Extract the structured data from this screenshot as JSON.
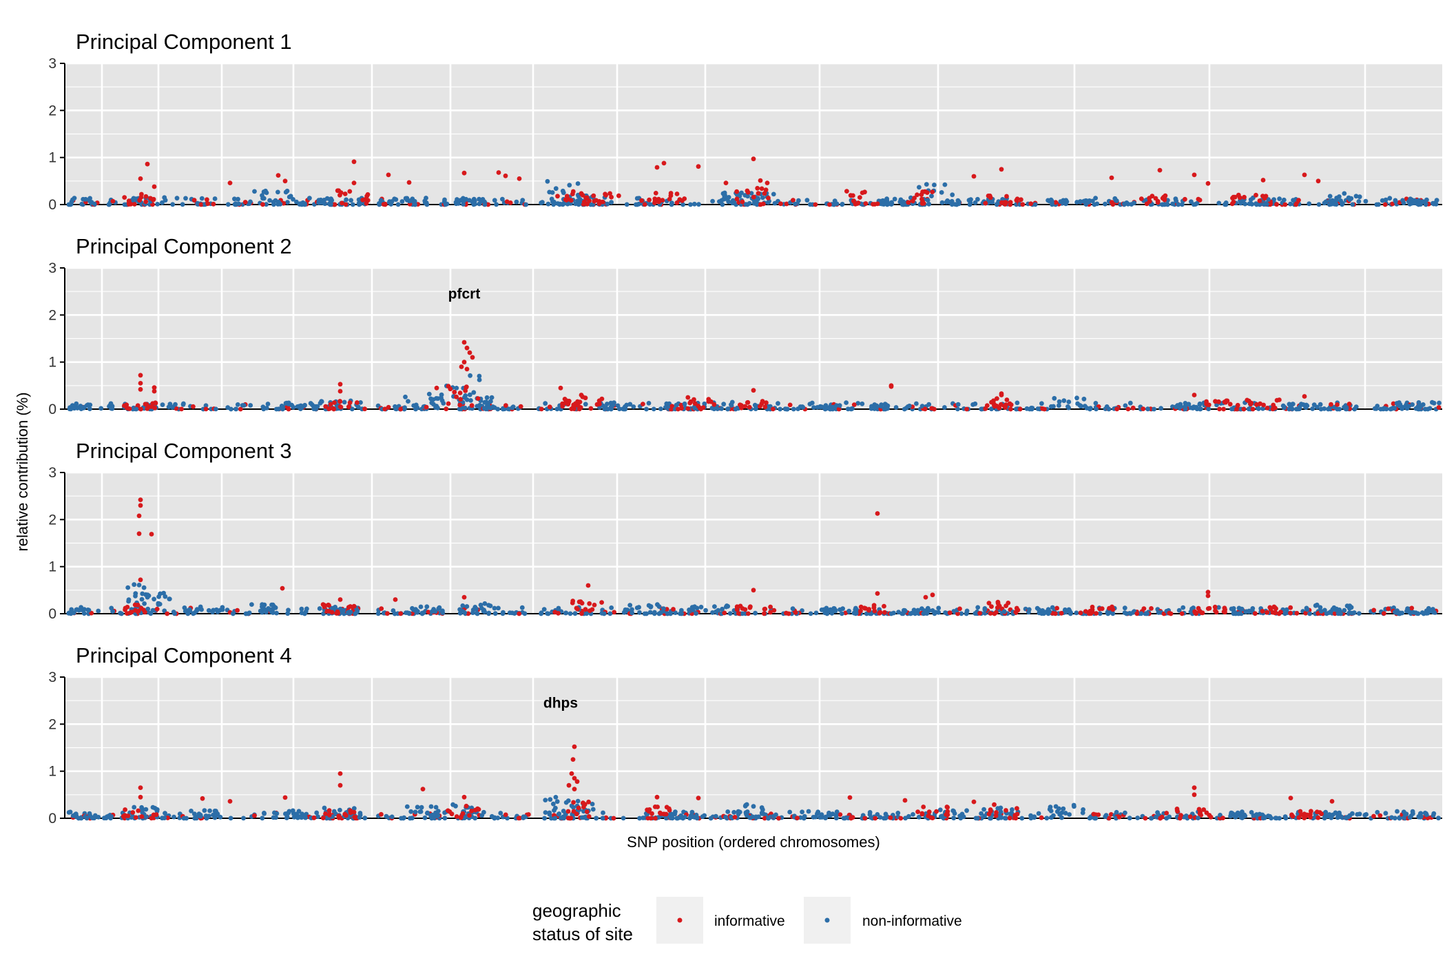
{
  "chart_data": {
    "type": "scatter",
    "xlabel": "SNP position (ordered chromosomes)",
    "ylabel": "relative contribution (%)",
    "ylim": [
      0,
      3
    ],
    "y_ticks": [
      "0",
      "1",
      "2",
      "3"
    ],
    "grid": true,
    "legend": {
      "title_lines": [
        "geographic",
        "status of site"
      ],
      "position": "bottom",
      "entries": [
        "informative",
        "non-informative"
      ]
    },
    "colors": {
      "informative": "#d7191c",
      "non_informative": "#2c6ea8",
      "panel_background": "#e5e5e5",
      "gridline": "#ffffff"
    },
    "panels": [
      {
        "title": "Principal Component 1",
        "annotation": null,
        "informative_peaks": [
          [
            0.06,
            0.86
          ],
          [
            0.055,
            0.55
          ],
          [
            0.065,
            0.38
          ],
          [
            0.12,
            0.46
          ],
          [
            0.155,
            0.62
          ],
          [
            0.16,
            0.5
          ],
          [
            0.21,
            0.91
          ],
          [
            0.21,
            0.46
          ],
          [
            0.235,
            0.63
          ],
          [
            0.25,
            0.47
          ],
          [
            0.29,
            0.67
          ],
          [
            0.315,
            0.68
          ],
          [
            0.32,
            0.61
          ],
          [
            0.33,
            0.55
          ],
          [
            0.43,
            0.79
          ],
          [
            0.435,
            0.88
          ],
          [
            0.46,
            0.81
          ],
          [
            0.48,
            0.46
          ],
          [
            0.5,
            0.97
          ],
          [
            0.505,
            0.51
          ],
          [
            0.51,
            0.46
          ],
          [
            0.66,
            0.6
          ],
          [
            0.68,
            0.75
          ],
          [
            0.76,
            0.57
          ],
          [
            0.795,
            0.73
          ],
          [
            0.82,
            0.63
          ],
          [
            0.83,
            0.45
          ],
          [
            0.87,
            0.52
          ],
          [
            0.9,
            0.63
          ],
          [
            0.91,
            0.5
          ]
        ],
        "informative_clusters": [
          [
            0.055,
            0.22
          ],
          [
            0.21,
            0.3
          ],
          [
            0.37,
            0.3
          ],
          [
            0.39,
            0.28
          ],
          [
            0.44,
            0.25
          ],
          [
            0.5,
            0.35
          ],
          [
            0.58,
            0.3
          ],
          [
            0.62,
            0.3
          ],
          [
            0.68,
            0.2
          ],
          [
            0.79,
            0.2
          ],
          [
            0.86,
            0.22
          ]
        ],
        "non_informative_clusters": [
          [
            0.01,
            0.15
          ],
          [
            0.06,
            0.15
          ],
          [
            0.15,
            0.3
          ],
          [
            0.18,
            0.15
          ],
          [
            0.25,
            0.15
          ],
          [
            0.29,
            0.12
          ],
          [
            0.36,
            0.5
          ],
          [
            0.38,
            0.2
          ],
          [
            0.49,
            0.25
          ],
          [
            0.5,
            0.25
          ],
          [
            0.6,
            0.15
          ],
          [
            0.63,
            0.45
          ],
          [
            0.67,
            0.12
          ],
          [
            0.73,
            0.1
          ],
          [
            0.86,
            0.15
          ],
          [
            0.93,
            0.25
          ],
          [
            0.98,
            0.12
          ]
        ]
      },
      {
        "title": "Principal Component 2",
        "annotation": {
          "text": "pfcrt",
          "x": 0.29,
          "y": 2.45
        },
        "informative_peaks": [
          [
            0.29,
            1.42
          ],
          [
            0.292,
            1.3
          ],
          [
            0.294,
            1.2
          ],
          [
            0.296,
            1.1
          ],
          [
            0.29,
            1.0
          ],
          [
            0.288,
            0.9
          ],
          [
            0.292,
            0.85
          ],
          [
            0.055,
            0.72
          ],
          [
            0.055,
            0.55
          ],
          [
            0.055,
            0.42
          ],
          [
            0.065,
            0.46
          ],
          [
            0.065,
            0.38
          ],
          [
            0.2,
            0.53
          ],
          [
            0.2,
            0.38
          ],
          [
            0.27,
            0.45
          ],
          [
            0.36,
            0.45
          ],
          [
            0.375,
            0.3
          ],
          [
            0.5,
            0.4
          ],
          [
            0.6,
            0.5
          ],
          [
            0.6,
            0.48
          ],
          [
            0.68,
            0.3
          ],
          [
            0.68,
            0.33
          ],
          [
            0.82,
            0.3
          ],
          [
            0.9,
            0.27
          ]
        ],
        "informative_clusters": [
          [
            0.055,
            0.15
          ],
          [
            0.2,
            0.2
          ],
          [
            0.29,
            0.5
          ],
          [
            0.37,
            0.3
          ],
          [
            0.38,
            0.3
          ],
          [
            0.46,
            0.25
          ],
          [
            0.5,
            0.2
          ],
          [
            0.68,
            0.25
          ],
          [
            0.84,
            0.2
          ],
          [
            0.87,
            0.2
          ]
        ],
        "non_informative_clusters": [
          [
            0.02,
            0.12
          ],
          [
            0.07,
            0.12
          ],
          [
            0.17,
            0.15
          ],
          [
            0.2,
            0.18
          ],
          [
            0.26,
            0.35
          ],
          [
            0.29,
            0.8
          ],
          [
            0.3,
            0.25
          ],
          [
            0.4,
            0.15
          ],
          [
            0.47,
            0.15
          ],
          [
            0.55,
            0.12
          ],
          [
            0.6,
            0.15
          ],
          [
            0.73,
            0.25
          ],
          [
            0.82,
            0.12
          ],
          [
            0.9,
            0.12
          ],
          [
            0.98,
            0.15
          ]
        ]
      },
      {
        "title": "Principal Component 3",
        "annotation": null,
        "informative_peaks": [
          [
            0.055,
            2.42
          ],
          [
            0.055,
            2.3
          ],
          [
            0.054,
            2.08
          ],
          [
            0.054,
            1.7
          ],
          [
            0.063,
            1.69
          ],
          [
            0.59,
            2.13
          ],
          [
            0.055,
            0.72
          ],
          [
            0.158,
            0.54
          ],
          [
            0.38,
            0.6
          ],
          [
            0.59,
            0.43
          ],
          [
            0.63,
            0.4
          ],
          [
            0.625,
            0.35
          ],
          [
            0.83,
            0.46
          ],
          [
            0.83,
            0.38
          ],
          [
            0.5,
            0.5
          ],
          [
            0.29,
            0.35
          ],
          [
            0.24,
            0.3
          ],
          [
            0.2,
            0.3
          ]
        ],
        "informative_clusters": [
          [
            0.055,
            0.2
          ],
          [
            0.2,
            0.2
          ],
          [
            0.38,
            0.3
          ],
          [
            0.5,
            0.2
          ],
          [
            0.59,
            0.2
          ],
          [
            0.68,
            0.25
          ],
          [
            0.75,
            0.15
          ],
          [
            0.83,
            0.15
          ],
          [
            0.88,
            0.15
          ]
        ],
        "non_informative_clusters": [
          [
            0.01,
            0.1
          ],
          [
            0.06,
            0.62
          ],
          [
            0.065,
            0.45
          ],
          [
            0.1,
            0.15
          ],
          [
            0.15,
            0.2
          ],
          [
            0.2,
            0.15
          ],
          [
            0.26,
            0.15
          ],
          [
            0.3,
            0.22
          ],
          [
            0.42,
            0.2
          ],
          [
            0.47,
            0.18
          ],
          [
            0.56,
            0.12
          ],
          [
            0.62,
            0.12
          ],
          [
            0.72,
            0.12
          ],
          [
            0.86,
            0.12
          ],
          [
            0.92,
            0.2
          ],
          [
            0.98,
            0.12
          ]
        ]
      },
      {
        "title": "Principal Component 4",
        "annotation": {
          "text": "dhps",
          "x": 0.36,
          "y": 2.45
        },
        "informative_peaks": [
          [
            0.37,
            1.52
          ],
          [
            0.369,
            1.25
          ],
          [
            0.368,
            0.95
          ],
          [
            0.37,
            0.85
          ],
          [
            0.372,
            0.78
          ],
          [
            0.366,
            0.7
          ],
          [
            0.37,
            0.62
          ],
          [
            0.055,
            0.65
          ],
          [
            0.055,
            0.45
          ],
          [
            0.2,
            0.95
          ],
          [
            0.2,
            0.7
          ],
          [
            0.26,
            0.62
          ],
          [
            0.16,
            0.44
          ],
          [
            0.1,
            0.42
          ],
          [
            0.12,
            0.36
          ],
          [
            0.29,
            0.45
          ],
          [
            0.43,
            0.45
          ],
          [
            0.46,
            0.43
          ],
          [
            0.57,
            0.44
          ],
          [
            0.61,
            0.38
          ],
          [
            0.66,
            0.35
          ],
          [
            0.82,
            0.65
          ],
          [
            0.82,
            0.5
          ],
          [
            0.89,
            0.43
          ],
          [
            0.92,
            0.36
          ]
        ],
        "informative_clusters": [
          [
            0.055,
            0.2
          ],
          [
            0.2,
            0.2
          ],
          [
            0.29,
            0.3
          ],
          [
            0.37,
            0.4
          ],
          [
            0.43,
            0.25
          ],
          [
            0.63,
            0.25
          ],
          [
            0.68,
            0.3
          ],
          [
            0.82,
            0.2
          ],
          [
            0.9,
            0.15
          ]
        ],
        "non_informative_clusters": [
          [
            0.02,
            0.1
          ],
          [
            0.06,
            0.25
          ],
          [
            0.1,
            0.2
          ],
          [
            0.16,
            0.2
          ],
          [
            0.2,
            0.22
          ],
          [
            0.26,
            0.25
          ],
          [
            0.29,
            0.3
          ],
          [
            0.36,
            0.45
          ],
          [
            0.37,
            0.35
          ],
          [
            0.45,
            0.15
          ],
          [
            0.5,
            0.3
          ],
          [
            0.55,
            0.15
          ],
          [
            0.64,
            0.2
          ],
          [
            0.68,
            0.25
          ],
          [
            0.73,
            0.28
          ],
          [
            0.86,
            0.12
          ],
          [
            0.93,
            0.12
          ],
          [
            0.98,
            0.15
          ]
        ]
      }
    ]
  }
}
